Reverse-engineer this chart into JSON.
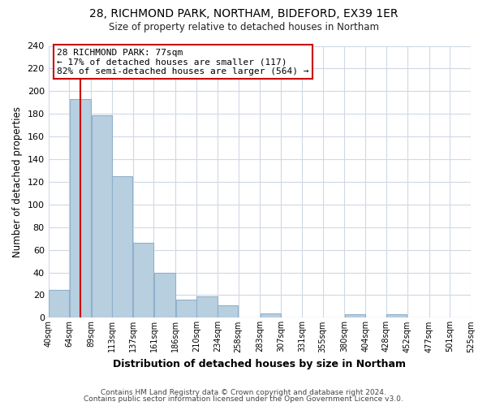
{
  "title1": "28, RICHMOND PARK, NORTHAM, BIDEFORD, EX39 1ER",
  "title2": "Size of property relative to detached houses in Northam",
  "xlabel": "Distribution of detached houses by size in Northam",
  "ylabel": "Number of detached properties",
  "bar_edges": [
    40,
    64,
    89,
    113,
    137,
    161,
    186,
    210,
    234,
    258,
    283,
    307,
    331,
    355,
    380,
    404,
    428,
    452,
    477,
    501,
    525
  ],
  "bar_heights": [
    25,
    193,
    179,
    125,
    66,
    40,
    16,
    19,
    11,
    0,
    4,
    0,
    0,
    0,
    3,
    0,
    3,
    0,
    0,
    0
  ],
  "bar_color": "#b8cfe0",
  "bar_edgecolor": "#90b0cc",
  "property_line_x": 77,
  "property_line_color": "#cc0000",
  "annotation_title": "28 RICHMOND PARK: 77sqm",
  "annotation_line1": "← 17% of detached houses are smaller (117)",
  "annotation_line2": "82% of semi-detached houses are larger (564) →",
  "annotation_box_facecolor": "#ffffff",
  "annotation_box_edgecolor": "#cc0000",
  "ylim": [
    0,
    240
  ],
  "yticks": [
    0,
    20,
    40,
    60,
    80,
    100,
    120,
    140,
    160,
    180,
    200,
    220,
    240
  ],
  "tick_labels": [
    "40sqm",
    "64sqm",
    "89sqm",
    "113sqm",
    "137sqm",
    "161sqm",
    "186sqm",
    "210sqm",
    "234sqm",
    "258sqm",
    "283sqm",
    "307sqm",
    "331sqm",
    "355sqm",
    "380sqm",
    "404sqm",
    "428sqm",
    "452sqm",
    "477sqm",
    "501sqm",
    "525sqm"
  ],
  "footer1": "Contains HM Land Registry data © Crown copyright and database right 2024.",
  "footer2": "Contains public sector information licensed under the Open Government Licence v3.0.",
  "fig_facecolor": "#ffffff",
  "plot_bg_color": "#ffffff",
  "grid_color": "#d0d8e4"
}
